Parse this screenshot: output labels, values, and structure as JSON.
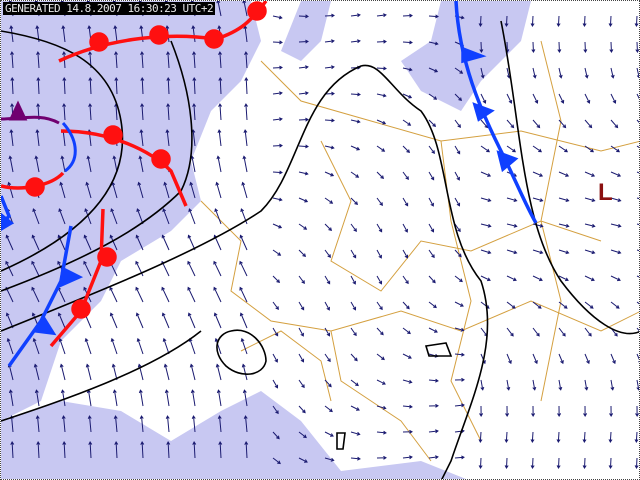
{
  "header": {
    "generated_label": "GENERATED 14.8.2007 16:30:23 UTC+2"
  },
  "pressure_centers": [
    {
      "label": "L",
      "type": "low"
    }
  ],
  "colors": {
    "sea": "#c8c8f2",
    "land": "#ffffff",
    "borders": "#d4a040",
    "wind": "#1a1a70",
    "cold_front": "#1040ff",
    "warm_front": "#ff1010",
    "occluded_front": "#700070",
    "isobar": "#000000",
    "low": "#8b1010"
  }
}
